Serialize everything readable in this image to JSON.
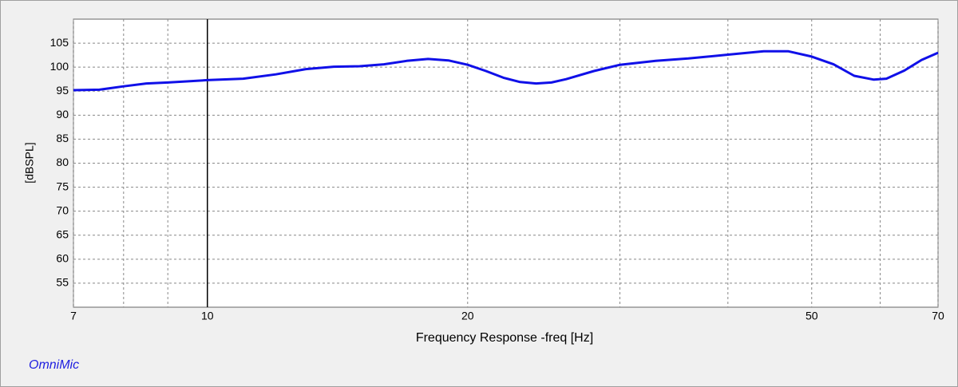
{
  "chart_data": {
    "type": "line",
    "xlabel": "Frequency Response -freq [Hz]",
    "ylabel": "[dBSPL]",
    "watermark": "OmniMic",
    "x": [
      7,
      7.5,
      8,
      8.5,
      9,
      10,
      11,
      12,
      13,
      14,
      15,
      16,
      17,
      18,
      19,
      20,
      21,
      22,
      23,
      24,
      25,
      26,
      28,
      30,
      33,
      36,
      40,
      44,
      47,
      50,
      53,
      56,
      59,
      61,
      64,
      67,
      70
    ],
    "series": [
      {
        "name": "dBSPL",
        "color": "#1010e8",
        "values": [
          95.2,
          95.3,
          96.0,
          96.6,
          96.8,
          97.3,
          97.6,
          98.5,
          99.6,
          100.1,
          100.2,
          100.6,
          101.3,
          101.7,
          101.4,
          100.5,
          99.2,
          97.8,
          96.9,
          96.6,
          96.8,
          97.5,
          99.2,
          100.5,
          101.3,
          101.8,
          102.6,
          103.3,
          103.3,
          102.2,
          100.6,
          98.2,
          97.4,
          97.6,
          99.3,
          101.5,
          103.0
        ]
      }
    ],
    "xscale": "log",
    "xlim": [
      7,
      70
    ],
    "xticks": [
      7,
      10,
      20,
      50,
      70
    ],
    "xgrid": [
      8,
      9,
      30,
      40,
      60
    ],
    "ylim": [
      50,
      110
    ],
    "yticks": [
      55,
      60,
      65,
      70,
      75,
      80,
      85,
      90,
      95,
      100,
      105
    ],
    "cursor_x": 10,
    "grid": true
  }
}
